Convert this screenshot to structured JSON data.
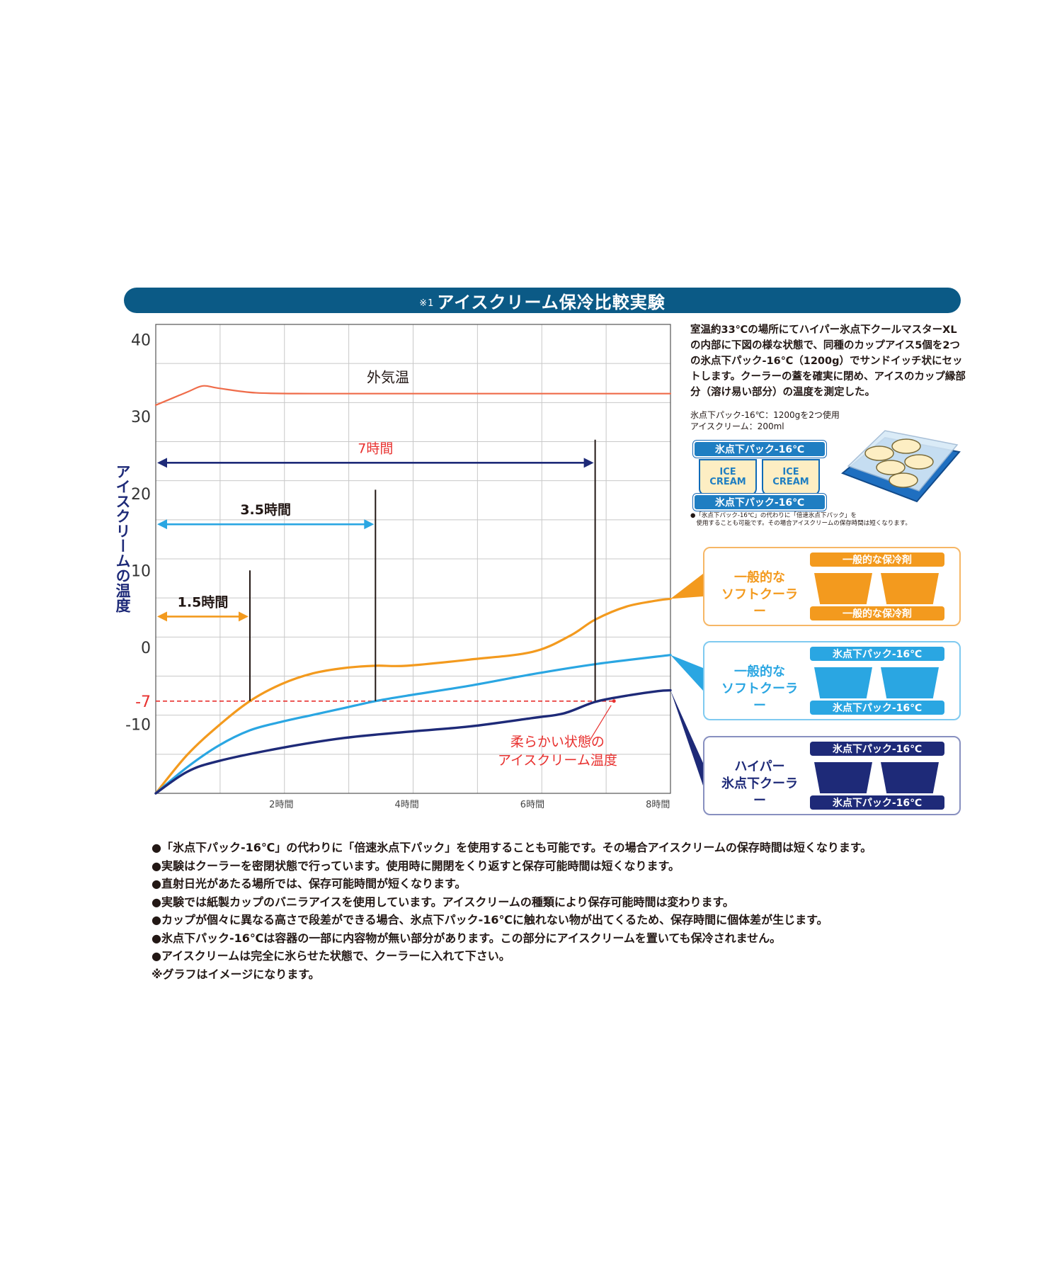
{
  "header": {
    "prefix": "※1",
    "title": "アイスクリーム保冷比較実験"
  },
  "chart_data": {
    "type": "line",
    "ylabel": "アイスクリームの温度",
    "xlabel": "",
    "ylim": [
      -19,
      42
    ],
    "xlim": [
      0,
      8.2
    ],
    "yticks": [
      {
        "value": 40,
        "label": "40"
      },
      {
        "value": 30,
        "label": "30"
      },
      {
        "value": 20,
        "label": "20"
      },
      {
        "value": 10,
        "label": "10"
      },
      {
        "value": 0,
        "label": "0"
      },
      {
        "value": -7,
        "label": "-7"
      },
      {
        "value": -10,
        "label": "-10"
      }
    ],
    "xticks": [
      {
        "value": 2,
        "label": "2時間"
      },
      {
        "value": 4,
        "label": "4時間"
      },
      {
        "value": 6,
        "label": "6時間"
      },
      {
        "value": 8,
        "label": "8時間"
      }
    ],
    "grid": true,
    "series": [
      {
        "name": "外気温",
        "color": "#ef6c4a",
        "points": [
          [
            0,
            31.5
          ],
          [
            0.5,
            33.2
          ],
          [
            0.75,
            34
          ],
          [
            1.0,
            33.7
          ],
          [
            1.6,
            33.1
          ],
          [
            2.5,
            33
          ],
          [
            4,
            33
          ],
          [
            6,
            33
          ],
          [
            8.2,
            33
          ]
        ]
      },
      {
        "name": "一般的な ソフトクーラー 一般的な保冷剤",
        "color": "#f39a1e",
        "points": [
          [
            0,
            -19
          ],
          [
            0.5,
            -14
          ],
          [
            1.0,
            -10.2
          ],
          [
            1.5,
            -7
          ],
          [
            2.0,
            -4.8
          ],
          [
            2.5,
            -3.4
          ],
          [
            3.0,
            -2.7
          ],
          [
            3.5,
            -2.4
          ],
          [
            4.0,
            -2.4
          ],
          [
            5.0,
            -1.6
          ],
          [
            6.0,
            -0.6
          ],
          [
            6.6,
            1.5
          ],
          [
            7.0,
            3.6
          ],
          [
            7.5,
            5.3
          ],
          [
            8.0,
            6.1
          ],
          [
            8.2,
            6.3
          ]
        ]
      },
      {
        "name": "一般的な ソフトクーラー 氷点下パック-16℃",
        "color": "#2aa6e2",
        "points": [
          [
            0,
            -19
          ],
          [
            0.5,
            -15.6
          ],
          [
            1.0,
            -12.8
          ],
          [
            1.5,
            -10.8
          ],
          [
            2.0,
            -9.7
          ],
          [
            2.5,
            -8.8
          ],
          [
            3.0,
            -7.9
          ],
          [
            3.5,
            -7.0
          ],
          [
            4.0,
            -6.3
          ],
          [
            5.0,
            -5.0
          ],
          [
            6.0,
            -3.5
          ],
          [
            7.0,
            -2.2
          ],
          [
            8.2,
            -1.0
          ]
        ]
      },
      {
        "name": "ハイパー 氷点下クーラー",
        "color": "#1e2a78",
        "points": [
          [
            0,
            -19
          ],
          [
            0.5,
            -16.2
          ],
          [
            1.0,
            -14.8
          ],
          [
            2.0,
            -13.1
          ],
          [
            3.0,
            -11.8
          ],
          [
            4.0,
            -11.0
          ],
          [
            5.0,
            -10.3
          ],
          [
            6.0,
            -9.2
          ],
          [
            6.5,
            -8.6
          ],
          [
            7.0,
            -7.1
          ],
          [
            7.5,
            -6.3
          ],
          [
            8.0,
            -5.7
          ],
          [
            8.2,
            -5.6
          ]
        ]
      }
    ],
    "reference_line": {
      "value": -7,
      "color": "#e8312f"
    },
    "annotations": {
      "outside_temp": "外気温",
      "soft_state_line1": "柔らかい状態の",
      "soft_state_line2": "アイスクリーム温度",
      "duration_7": {
        "label": "7時間",
        "hours": 7.0,
        "color": "#1e2a78",
        "label_color": "#e8312f",
        "level": 24,
        "marker_top": 27
      },
      "duration_35": {
        "label": "3.5時間",
        "hours": 3.5,
        "color": "#2aa6e2",
        "label_color": "#231815",
        "level": 16,
        "marker_top": 20.5
      },
      "duration_15": {
        "label": "1.5時間",
        "hours": 1.5,
        "color": "#f39a1e",
        "label_color": "#231815",
        "level": 4,
        "marker_top": 10
      }
    }
  },
  "description": "室温約33℃の場所にてハイパー氷点下クールマスターXLの内部に下図の様な状態で、同種のカップアイス5個を2つの氷点下パック-16℃（1200g）でサンドイッチ状にセットします。クーラーの蓋を確実に閉め、アイスのカップ縁部分（溶け易い部分）の温度を測定した。",
  "spec": {
    "line1": "氷点下パック-16℃：1200gを2つ使用",
    "line2": "アイスクリーム：200ml"
  },
  "setup_diagram": {
    "pack_top": "氷点下パック-16℃",
    "pack_bottom": "氷点下パック-16℃",
    "cup_label_1": "ICE",
    "cup_label_2": "CREAM"
  },
  "small_note": {
    "line1": "●「氷点下パック-16℃」の代わりに「倍速氷点下パック」を",
    "line2": "　使用することも可能です。その場合アイスクリームの保存時間は短くなります。"
  },
  "legend_panels": [
    {
      "line1": "一般的な",
      "line2": "ソフトクーラー",
      "top_pill": "一般的な保冷剤",
      "bottom_pill": "一般的な保冷剤",
      "accent": "#f39a1e",
      "border": "#f6b766",
      "text_color": "#f39a1e"
    },
    {
      "line1": "一般的な",
      "line2": "ソフトクーラー",
      "top_pill": "氷点下パック-16℃",
      "bottom_pill": "氷点下パック-16℃",
      "accent": "#2aa6e2",
      "border": "#7fcaf0",
      "text_color": "#2aa6e2"
    },
    {
      "line1": "ハイパー",
      "line2": "氷点下クーラー",
      "top_pill": "氷点下パック-16℃",
      "bottom_pill": "氷点下パック-16℃",
      "accent": "#1e2a78",
      "border": "#8890c0",
      "text_color": "#1e2a78"
    }
  ],
  "notes": [
    "●「氷点下パック-16℃」の代わりに「倍速氷点下パック」を使用することも可能です。その場合アイスクリームの保存時間は短くなります。",
    "●実験はクーラーを密閉状態で行っています。使用時に開閉をくり返すと保存可能時間は短くなります。",
    "●直射日光があたる場所では、保存可能時間が短くなります。",
    "●実験では紙製カップのバニラアイスを使用しています。アイスクリームの種類により保存可能時間は変わります。",
    "●カップが個々に異なる高さで段差ができる場合、氷点下パック-16℃に触れない物が出てくるため、保存時間に個体差が生じます。",
    "●氷点下パック-16℃は容器の一部に内容物が無い部分があります。この部分にアイスクリームを置いても保冷されません。",
    "●アイスクリームは完全に氷らせた状態で、クーラーに入れて下さい。",
    "※グラフはイメージになります。"
  ]
}
